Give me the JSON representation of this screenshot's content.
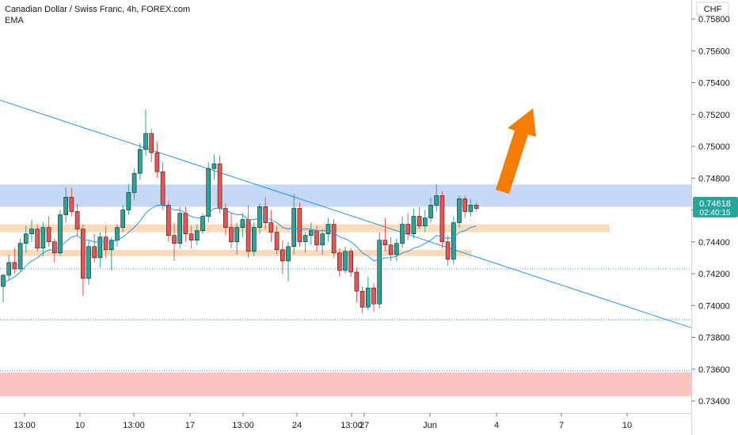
{
  "header": {
    "title": "Canadian Dollar / Swiss Franc, 4h, FOREX.com",
    "indicator": "EMA"
  },
  "price_axis": {
    "currency": "CHF",
    "current_price": "0.74618",
    "countdown": "02:40:15"
  },
  "colors": {
    "up": "#26a69a",
    "down": "#ef5350",
    "candle_outline": "#1b1b1b",
    "trendline": "#2196f3",
    "ema": "#2196f3",
    "resistance_zone": "#bbd1f5",
    "support_zone": "#fbd5b0",
    "demand_zone": "#fbb8b8",
    "arrow": "#f57c00",
    "price_label": "#26a69a"
  },
  "chart_data": {
    "type": "candlestick",
    "title": "Canadian Dollar / Swiss Franc, 4h, FOREX.com",
    "ylabel": "CHF",
    "ylim": [
      0.7334,
      0.7592
    ],
    "y_ticks": [
      "0.75800",
      "0.75600",
      "0.75400",
      "0.75200",
      "0.75000",
      "0.74800",
      "0.74600",
      "0.74400",
      "0.74200",
      "0.74000",
      "0.73800",
      "0.73600",
      "0.73400"
    ],
    "x_ticks": [
      "13:00",
      "10",
      "13:00",
      "17",
      "13:00",
      "24",
      "13:00",
      "27",
      "Jun",
      "4",
      "7",
      "10"
    ],
    "last_price": 0.74618,
    "candles": [
      [
        0.7412,
        0.742,
        0.7402,
        0.7419
      ],
      [
        0.7419,
        0.7432,
        0.7416,
        0.7427
      ],
      [
        0.7427,
        0.7436,
        0.742,
        0.7423
      ],
      [
        0.7423,
        0.7442,
        0.7421,
        0.7439
      ],
      [
        0.7439,
        0.745,
        0.7433,
        0.7445
      ],
      [
        0.7445,
        0.7454,
        0.744,
        0.7448
      ],
      [
        0.7448,
        0.7451,
        0.7434,
        0.7436
      ],
      [
        0.7436,
        0.7452,
        0.7431,
        0.7449
      ],
      [
        0.7449,
        0.7456,
        0.7437,
        0.744
      ],
      [
        0.744,
        0.7442,
        0.7427,
        0.7433
      ],
      [
        0.7433,
        0.746,
        0.7431,
        0.7457
      ],
      [
        0.7457,
        0.7474,
        0.7452,
        0.7468
      ],
      [
        0.7468,
        0.7474,
        0.7456,
        0.7459
      ],
      [
        0.7459,
        0.7464,
        0.7444,
        0.7448
      ],
      [
        0.7448,
        0.7451,
        0.7406,
        0.7417
      ],
      [
        0.7417,
        0.7441,
        0.7413,
        0.7437
      ],
      [
        0.7437,
        0.7445,
        0.7427,
        0.743
      ],
      [
        0.743,
        0.7446,
        0.7424,
        0.7443
      ],
      [
        0.7443,
        0.745,
        0.743,
        0.7435
      ],
      [
        0.7435,
        0.7443,
        0.7422,
        0.7441
      ],
      [
        0.7441,
        0.7451,
        0.7437,
        0.7449
      ],
      [
        0.7449,
        0.7463,
        0.7446,
        0.746
      ],
      [
        0.746,
        0.7476,
        0.7457,
        0.7471
      ],
      [
        0.7471,
        0.7486,
        0.7466,
        0.7483
      ],
      [
        0.7483,
        0.7502,
        0.7479,
        0.7498
      ],
      [
        0.7498,
        0.7523,
        0.7494,
        0.7508
      ],
      [
        0.7508,
        0.7511,
        0.749,
        0.7496
      ],
      [
        0.7496,
        0.7503,
        0.748,
        0.7484
      ],
      [
        0.7484,
        0.749,
        0.746,
        0.7463
      ],
      [
        0.7463,
        0.7466,
        0.744,
        0.7444
      ],
      [
        0.7444,
        0.7452,
        0.7428,
        0.7439
      ],
      [
        0.7439,
        0.7462,
        0.7436,
        0.7458
      ],
      [
        0.7458,
        0.7462,
        0.744,
        0.7445
      ],
      [
        0.7445,
        0.745,
        0.7436,
        0.7441
      ],
      [
        0.7441,
        0.7451,
        0.7438,
        0.7447
      ],
      [
        0.7447,
        0.7458,
        0.7445,
        0.7456
      ],
      [
        0.7456,
        0.749,
        0.7452,
        0.7486
      ],
      [
        0.7486,
        0.7495,
        0.7479,
        0.7489
      ],
      [
        0.7489,
        0.7494,
        0.7458,
        0.7461
      ],
      [
        0.7461,
        0.7464,
        0.7444,
        0.7449
      ],
      [
        0.7449,
        0.7458,
        0.7436,
        0.744
      ],
      [
        0.744,
        0.7452,
        0.7432,
        0.7449
      ],
      [
        0.7449,
        0.7458,
        0.7443,
        0.7454
      ],
      [
        0.7454,
        0.7463,
        0.743,
        0.7434
      ],
      [
        0.7434,
        0.7452,
        0.7431,
        0.7449
      ],
      [
        0.7449,
        0.7464,
        0.7445,
        0.7462
      ],
      [
        0.7462,
        0.7468,
        0.7448,
        0.7452
      ],
      [
        0.7452,
        0.746,
        0.744,
        0.7446
      ],
      [
        0.7446,
        0.745,
        0.7432,
        0.7435
      ],
      [
        0.7435,
        0.7441,
        0.742,
        0.7428
      ],
      [
        0.7428,
        0.744,
        0.7415,
        0.7437
      ],
      [
        0.7437,
        0.747,
        0.7432,
        0.7461
      ],
      [
        0.7461,
        0.7465,
        0.7437,
        0.744
      ],
      [
        0.744,
        0.7446,
        0.7433,
        0.7444
      ],
      [
        0.7444,
        0.7452,
        0.7438,
        0.7447
      ],
      [
        0.7447,
        0.745,
        0.7434,
        0.7438
      ],
      [
        0.7438,
        0.7448,
        0.7432,
        0.7445
      ],
      [
        0.7445,
        0.7455,
        0.744,
        0.7451
      ],
      [
        0.7451,
        0.7454,
        0.743,
        0.7433
      ],
      [
        0.7433,
        0.7436,
        0.7418,
        0.7422
      ],
      [
        0.7422,
        0.7437,
        0.742,
        0.7434
      ],
      [
        0.7434,
        0.7436,
        0.7418,
        0.7421
      ],
      [
        0.7421,
        0.7424,
        0.7402,
        0.7409
      ],
      [
        0.7409,
        0.7412,
        0.7395,
        0.7399
      ],
      [
        0.7399,
        0.7418,
        0.7397,
        0.7411
      ],
      [
        0.7411,
        0.7414,
        0.7396,
        0.7401
      ],
      [
        0.7401,
        0.7446,
        0.7398,
        0.7441
      ],
      [
        0.7441,
        0.7455,
        0.7434,
        0.7438
      ],
      [
        0.7438,
        0.7443,
        0.7428,
        0.7432
      ],
      [
        0.7432,
        0.7442,
        0.7428,
        0.7439
      ],
      [
        0.7439,
        0.7456,
        0.7436,
        0.7451
      ],
      [
        0.7451,
        0.7458,
        0.7441,
        0.7445
      ],
      [
        0.7445,
        0.7461,
        0.7442,
        0.7456
      ],
      [
        0.7456,
        0.7462,
        0.7448,
        0.745
      ],
      [
        0.745,
        0.746,
        0.7446,
        0.7455
      ],
      [
        0.7455,
        0.7468,
        0.7452,
        0.7463
      ],
      [
        0.7463,
        0.7476,
        0.7459,
        0.7469
      ],
      [
        0.7469,
        0.7472,
        0.7436,
        0.744
      ],
      [
        0.744,
        0.7444,
        0.7425,
        0.7429
      ],
      [
        0.7429,
        0.7456,
        0.7426,
        0.7452
      ],
      [
        0.7452,
        0.7469,
        0.7449,
        0.7467
      ],
      [
        0.7467,
        0.7469,
        0.7455,
        0.7459
      ],
      [
        0.7459,
        0.7467,
        0.7456,
        0.7463
      ],
      [
        0.7463,
        0.7465,
        0.7459,
        0.7461
      ]
    ],
    "ema": [
      0.7414,
      0.7416,
      0.7418,
      0.7421,
      0.7425,
      0.7428,
      0.743,
      0.7433,
      0.7435,
      0.7435,
      0.7437,
      0.744,
      0.7443,
      0.7444,
      0.7441,
      0.7441,
      0.744,
      0.744,
      0.744,
      0.744,
      0.7441,
      0.7443,
      0.7446,
      0.7449,
      0.7453,
      0.7458,
      0.7461,
      0.7463,
      0.7463,
      0.7462,
      0.746,
      0.746,
      0.7458,
      0.7456,
      0.7455,
      0.7455,
      0.7458,
      0.7461,
      0.7461,
      0.746,
      0.7458,
      0.7457,
      0.7457,
      0.7454,
      0.7454,
      0.7455,
      0.7455,
      0.7454,
      0.7452,
      0.7449,
      0.7448,
      0.7449,
      0.7448,
      0.7448,
      0.7448,
      0.7447,
      0.7447,
      0.7447,
      0.7446,
      0.7443,
      0.7442,
      0.744,
      0.7437,
      0.7433,
      0.7431,
      0.7428,
      0.7429,
      0.743,
      0.743,
      0.7431,
      0.7433,
      0.7434,
      0.7436,
      0.7437,
      0.7439,
      0.7441,
      0.7444,
      0.7443,
      0.7442,
      0.7443,
      0.7446,
      0.7447,
      0.7449,
      0.745
    ],
    "horizontal_dotted_levels": [
      0.7423,
      0.7391,
      0.7359
    ],
    "zones": [
      {
        "name": "resistance-zone",
        "y_top": 0.7476,
        "y_bottom": 0.7462,
        "x_end": "axis"
      },
      {
        "name": "support-zone-upper",
        "y_top": 0.7451,
        "y_bottom": 0.7446,
        "x_end": "10"
      },
      {
        "name": "support-zone-lower",
        "y_top": 0.7435,
        "y_bottom": 0.7431,
        "x_end": "4"
      },
      {
        "name": "demand-zone",
        "y_top": 0.7358,
        "y_bottom": 0.7343,
        "x_end": "axis"
      }
    ],
    "trendline": {
      "from": [
        0,
        0.7529
      ],
      "to": [
        1,
        0.7386
      ]
    }
  }
}
